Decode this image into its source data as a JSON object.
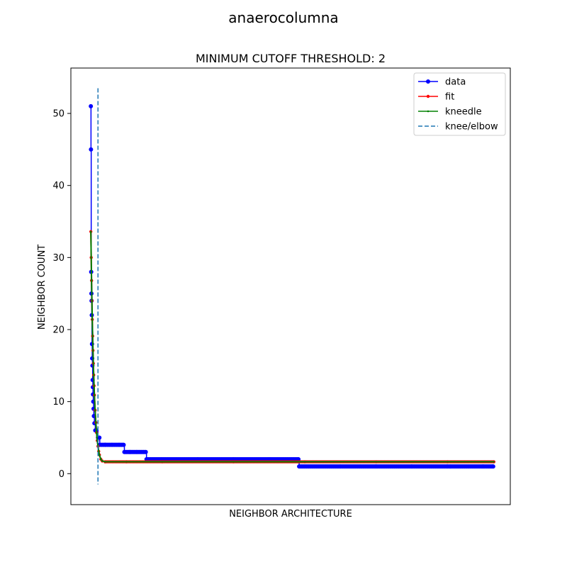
{
  "figure": {
    "suptitle": "anaerocolumna"
  },
  "chart_data": {
    "type": "line",
    "title": "MINIMUM CUTOFF THRESHOLD: 2",
    "xlabel": "NEIGHBOR ARCHITECTURE",
    "ylabel": "NEIGHBOR COUNT",
    "ylim": [
      -4.3,
      56.3
    ],
    "xlim": [
      -2.8,
      58.8
    ],
    "yticks": [
      0,
      10,
      20,
      30,
      40,
      50
    ],
    "xticks_visible": false,
    "grid": false,
    "legend_position": "top-right",
    "knee_x": 1.0,
    "series": [
      {
        "name": "data",
        "color": "#0000ff",
        "marker": "circle",
        "points": [
          [
            0,
            51
          ],
          [
            0.02,
            45
          ],
          [
            0.05,
            28
          ],
          [
            0.08,
            25
          ],
          [
            0.1,
            24
          ],
          [
            0.13,
            22
          ],
          [
            0.16,
            18
          ],
          [
            0.19,
            16
          ],
          [
            0.22,
            15
          ],
          [
            0.25,
            13
          ],
          [
            0.28,
            12
          ],
          [
            0.3,
            11
          ],
          [
            0.34,
            10
          ],
          [
            0.38,
            9
          ],
          [
            0.42,
            8
          ],
          [
            0.5,
            7
          ],
          [
            0.62,
            6
          ],
          [
            0.8,
            6
          ],
          [
            1.0,
            5
          ],
          [
            1.1,
            5
          ],
          [
            1.2,
            5
          ],
          [
            1.25,
            4
          ],
          [
            2,
            4
          ],
          [
            3,
            4
          ],
          [
            4,
            4
          ],
          [
            4.6,
            4
          ],
          [
            4.7,
            3
          ],
          [
            5.5,
            3
          ],
          [
            6.5,
            3
          ],
          [
            7.7,
            3
          ],
          [
            7.8,
            2
          ],
          [
            10,
            2
          ],
          [
            15,
            2
          ],
          [
            20,
            2
          ],
          [
            25,
            2
          ],
          [
            29.1,
            2
          ],
          [
            29.2,
            1
          ],
          [
            35,
            1
          ],
          [
            40,
            1
          ],
          [
            45,
            1
          ],
          [
            50,
            1
          ],
          [
            55,
            1
          ],
          [
            56.4,
            1
          ]
        ]
      },
      {
        "name": "fit",
        "color": "#ff0000",
        "marker": "dot",
        "points": [
          [
            0,
            33.6
          ],
          [
            0.05,
            30
          ],
          [
            0.1,
            26.8
          ],
          [
            0.15,
            24
          ],
          [
            0.2,
            21.4
          ],
          [
            0.25,
            19.1
          ],
          [
            0.3,
            17.1
          ],
          [
            0.35,
            15.3
          ],
          [
            0.4,
            13.7
          ],
          [
            0.45,
            12.2
          ],
          [
            0.5,
            10.9
          ],
          [
            0.6,
            8.8
          ],
          [
            0.7,
            7.1
          ],
          [
            0.8,
            5.7
          ],
          [
            0.9,
            4.6
          ],
          [
            1.0,
            3.8
          ],
          [
            1.1,
            3.1
          ],
          [
            1.2,
            2.6
          ],
          [
            1.4,
            2.0
          ],
          [
            1.6,
            1.75
          ],
          [
            2,
            1.65
          ],
          [
            5,
            1.65
          ],
          [
            10,
            1.65
          ],
          [
            20,
            1.65
          ],
          [
            30,
            1.65
          ],
          [
            40,
            1.65
          ],
          [
            50,
            1.65
          ],
          [
            56.5,
            1.65
          ]
        ]
      },
      {
        "name": "kneedle",
        "color": "#008000",
        "marker": "small",
        "points": [
          [
            0,
            33.6
          ],
          [
            0.05,
            30
          ],
          [
            0.1,
            26.8
          ],
          [
            0.15,
            24
          ],
          [
            0.2,
            21.4
          ],
          [
            0.25,
            19.1
          ],
          [
            0.3,
            17.1
          ],
          [
            0.35,
            15.3
          ],
          [
            0.4,
            13.7
          ],
          [
            0.45,
            12.2
          ],
          [
            0.5,
            10.9
          ],
          [
            0.6,
            8.8
          ],
          [
            0.7,
            7.1
          ],
          [
            0.8,
            5.7
          ],
          [
            0.9,
            4.6
          ],
          [
            1.0,
            3.8
          ],
          [
            1.1,
            3.1
          ],
          [
            1.2,
            2.6
          ],
          [
            1.4,
            2.0
          ],
          [
            1.6,
            1.75
          ],
          [
            2,
            1.65
          ],
          [
            5,
            1.65
          ],
          [
            10,
            1.65
          ],
          [
            20,
            1.65
          ],
          [
            30,
            1.65
          ],
          [
            40,
            1.65
          ],
          [
            50,
            1.65
          ],
          [
            56.5,
            1.65
          ]
        ]
      }
    ],
    "vline": {
      "name": "knee/elbow",
      "color": "#1f77b4",
      "style": "dashed"
    }
  }
}
